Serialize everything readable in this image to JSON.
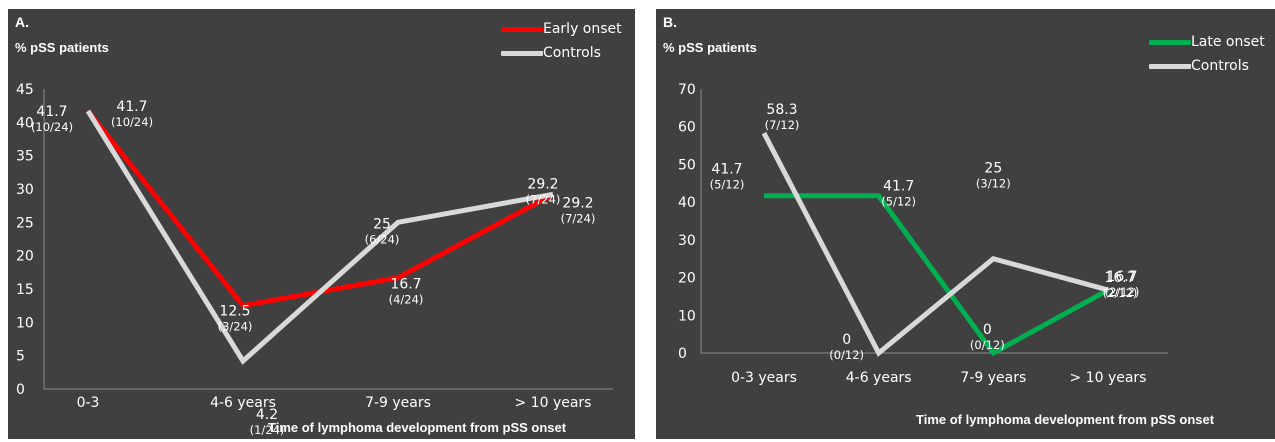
{
  "colors": {
    "background": "#404040",
    "text": "#ffffff",
    "early_onset": "#ff0000",
    "late_onset": "#00b050",
    "controls": "#d9d9d9"
  },
  "chart_data": [
    {
      "type": "line",
      "panel_label": "A.",
      "ylabel": "% pSS patients",
      "xlabel": "Time of lymphoma development from pSS onset",
      "categories": [
        "0-3",
        "4-6 years",
        "7-9 years",
        "> 10 years"
      ],
      "ylim": [
        0,
        45
      ],
      "yticks": [
        0,
        5,
        10,
        15,
        20,
        25,
        30,
        35,
        40,
        45
      ],
      "grid": false,
      "legend_position": "top-right",
      "series": [
        {
          "name": "Early onset",
          "color": "#ff0000",
          "values": [
            41.7,
            12.5,
            16.7,
            29.2
          ],
          "labels": [
            "41.7",
            "12.5",
            "16.7",
            "29.2"
          ],
          "fractions": [
            "(10/24)",
            "(3/24)",
            "(4/24)",
            "(7/24)"
          ]
        },
        {
          "name": "Controls",
          "color": "#d9d9d9",
          "values": [
            41.7,
            4.2,
            25,
            29.2
          ],
          "labels": [
            "41.7",
            "4.2",
            "25",
            "29.2"
          ],
          "fractions": [
            "(10/24)",
            "(1/24)",
            "(6/24)",
            "(7/24)"
          ]
        }
      ]
    },
    {
      "type": "line",
      "panel_label": "B.",
      "ylabel": "% pSS patients",
      "xlabel": "Time of lymphoma development from pSS onset",
      "categories": [
        "0-3 years",
        "4-6 years",
        "7-9 years",
        "> 10 years"
      ],
      "ylim": [
        0,
        70
      ],
      "yticks": [
        0,
        10,
        20,
        30,
        40,
        50,
        60,
        70
      ],
      "grid": false,
      "legend_position": "top-right",
      "series": [
        {
          "name": "Late onset",
          "color": "#00b050",
          "values": [
            41.7,
            41.7,
            0,
            16.7
          ],
          "labels": [
            "41.7",
            "41.7",
            "0",
            "16.7"
          ],
          "fractions": [
            "(5/12)",
            "(5/12)",
            "(0/12)",
            "(2/12)"
          ]
        },
        {
          "name": "Controls",
          "color": "#d9d9d9",
          "values": [
            58.3,
            0,
            25,
            16.7
          ],
          "labels": [
            "58.3",
            "0",
            "25",
            "16.7"
          ],
          "fractions": [
            "(7/12)",
            "(0/12)",
            "(3/12)",
            "(2/12)"
          ]
        }
      ]
    }
  ]
}
